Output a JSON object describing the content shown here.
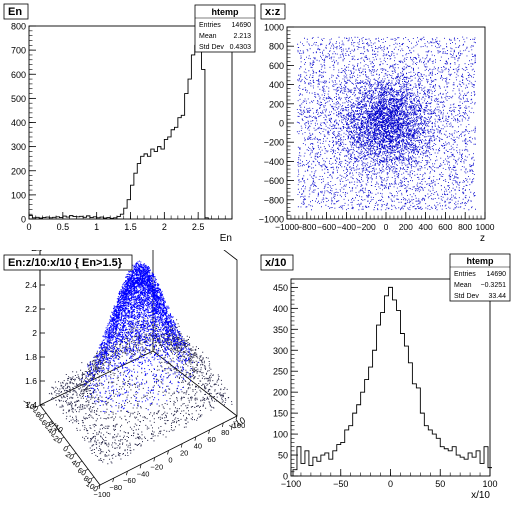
{
  "chart_data": [
    {
      "type": "bar",
      "title": "En",
      "xlabel": "En",
      "ylabel": "",
      "xlim": [
        0,
        3
      ],
      "ylim": [
        0,
        800
      ],
      "x_ticks": [
        "0",
        "0.5",
        "1",
        "1.5",
        "2",
        "2.5"
      ],
      "y_ticks": [
        "0",
        "100",
        "200",
        "300",
        "400",
        "500",
        "600",
        "700",
        "800"
      ],
      "stats": {
        "name": "htemp",
        "rows": [
          [
            "Entries",
            "14690"
          ],
          [
            "Mean",
            "2.213"
          ],
          [
            "Std Dev",
            "0.4303"
          ]
        ]
      },
      "series": [
        {
          "x": [
            0.0,
            0.05,
            0.1,
            0.15,
            0.2,
            0.25,
            0.3,
            0.35,
            0.4,
            0.45,
            0.5,
            0.55,
            0.6,
            0.65,
            0.7,
            0.75,
            0.8,
            0.85,
            0.9,
            0.95,
            1.0,
            1.05,
            1.1,
            1.15,
            1.2,
            1.25,
            1.3,
            1.35,
            1.4,
            1.45,
            1.5,
            1.55,
            1.6,
            1.65,
            1.7,
            1.75,
            1.8,
            1.85,
            1.9,
            1.95,
            2.0,
            2.05,
            2.1,
            2.15,
            2.2,
            2.25,
            2.3,
            2.35,
            2.4,
            2.45,
            2.5,
            2.55,
            2.6,
            2.65,
            2.7,
            2.75,
            2.8,
            2.85,
            2.9,
            2.95
          ],
          "values": [
            15,
            5,
            7,
            4,
            6,
            8,
            5,
            7,
            9,
            6,
            12,
            8,
            14,
            10,
            9,
            11,
            7,
            13,
            6,
            9,
            5,
            8,
            4,
            6,
            3,
            5,
            10,
            20,
            45,
            80,
            140,
            190,
            230,
            260,
            270,
            260,
            290,
            280,
            300,
            290,
            330,
            340,
            370,
            380,
            420,
            430,
            520,
            580,
            680,
            720,
            740,
            620,
            5,
            0,
            0,
            0,
            0,
            0,
            0,
            0
          ]
        }
      ]
    },
    {
      "type": "scatter",
      "title": "x:z",
      "xlabel": "z",
      "ylabel": "",
      "xlim": [
        -1000,
        1000
      ],
      "ylim": [
        -1000,
        1000
      ],
      "x_ticks": [
        "−1000",
        "−800",
        "−600",
        "−400",
        "−200",
        "0",
        "200",
        "400",
        "600",
        "800",
        "1000"
      ],
      "y_ticks": [
        "−1000",
        "−800",
        "−600",
        "−400",
        "−200",
        "0",
        "200",
        "400",
        "600",
        "800",
        "1000"
      ],
      "series": [
        {
          "description": "dense blue point cloud centred at z=0,x=0 with sigma about 230, plus uniform background over ±900"
        }
      ],
      "marker_color": "#0000cc"
    },
    {
      "type": "scatter",
      "title": "En:z/10:x/10 { En>1.5}",
      "xlabel": "x/10",
      "ylabel": "z/10",
      "zlabel": "En",
      "xlim": [
        -100,
        100
      ],
      "ylim": [
        -100,
        100
      ],
      "zlim": [
        1.4,
        2.7
      ],
      "x_ticks": [
        "−100",
        "−80",
        "−60",
        "−40",
        "−20",
        "0",
        "20",
        "40",
        "60",
        "80",
        "100"
      ],
      "y_ticks": [
        "−100",
        "−80",
        "−60",
        "−40",
        "−20",
        "0",
        "20",
        "40",
        "60",
        "80",
        "100"
      ],
      "z_ticks": [
        "1.4",
        "1.6",
        "1.8",
        "2",
        "2.2",
        "2.4",
        "2.6"
      ],
      "marker_color": "#0000ff"
    },
    {
      "type": "bar",
      "title": "x/10",
      "xlabel": "x/10",
      "ylabel": "",
      "xlim": [
        -100,
        100
      ],
      "ylim": [
        0,
        470
      ],
      "x_ticks": [
        "−100",
        "−50",
        "0",
        "50",
        "100"
      ],
      "y_ticks": [
        "0",
        "50",
        "100",
        "150",
        "200",
        "250",
        "300",
        "350",
        "400",
        "450"
      ],
      "stats": {
        "name": "htemp",
        "rows": [
          [
            "Entries",
            "14690"
          ],
          [
            "Mean",
            "−0.3251"
          ],
          [
            "Std Dev",
            "33.44"
          ]
        ]
      },
      "series": [
        {
          "x": [
            -98,
            -94,
            -90,
            -86,
            -82,
            -78,
            -74,
            -70,
            -66,
            -62,
            -58,
            -54,
            -50,
            -46,
            -42,
            -38,
            -34,
            -30,
            -26,
            -22,
            -18,
            -14,
            -10,
            -6,
            -2,
            2,
            6,
            10,
            14,
            18,
            22,
            26,
            30,
            34,
            38,
            42,
            46,
            50,
            54,
            58,
            62,
            66,
            70,
            74,
            78,
            82,
            86,
            90,
            94,
            98
          ],
          "values": [
            15,
            70,
            30,
            60,
            25,
            45,
            35,
            50,
            55,
            40,
            60,
            75,
            80,
            110,
            120,
            150,
            170,
            200,
            230,
            260,
            300,
            360,
            390,
            430,
            450,
            420,
            395,
            340,
            310,
            270,
            220,
            210,
            150,
            120,
            110,
            100,
            90,
            70,
            65,
            60,
            70,
            50,
            45,
            40,
            55,
            45,
            60,
            30,
            70,
            20
          ]
        }
      ]
    }
  ]
}
